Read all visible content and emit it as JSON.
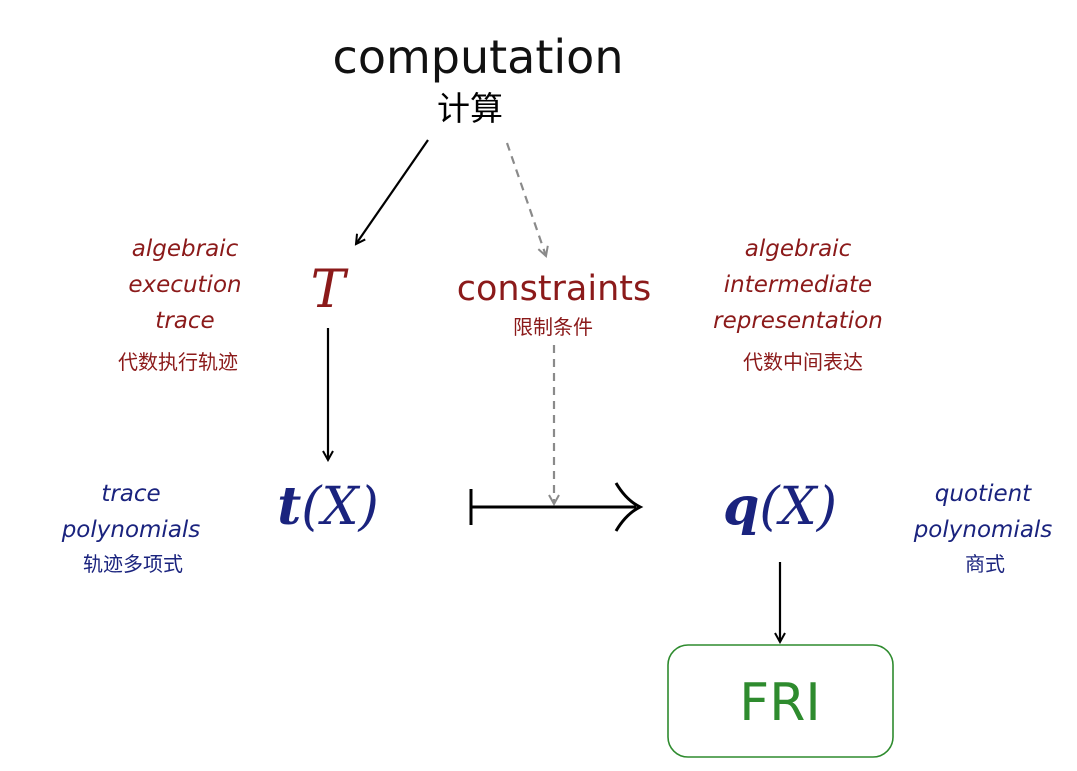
{
  "diagram": {
    "computation": {
      "title": "computation",
      "subtitle": "计算"
    },
    "trace_node": {
      "symbol": "T"
    },
    "constraints": {
      "title": "constraints",
      "subtitle": "限制条件"
    },
    "left_red_label": {
      "lines": [
        "algebraic",
        "execution",
        "trace"
      ],
      "chinese": "代数执行轨迹"
    },
    "right_red_label": {
      "lines": [
        "algebraic",
        "intermediate",
        "representation"
      ],
      "chinese": "代数中间表达"
    },
    "trace_poly": {
      "bold": "t",
      "rest": "(X)"
    },
    "quotient_poly": {
      "bold": "q",
      "rest": "(X)"
    },
    "left_blue_label": {
      "lines": [
        "trace",
        "polynomials"
      ],
      "chinese": "轨迹多项式"
    },
    "right_blue_label": {
      "lines": [
        "quotient",
        "polynomials"
      ],
      "chinese": "商式"
    },
    "fri": {
      "label": "FRI"
    }
  },
  "colors": {
    "red": "#8b1a1a",
    "blue": "#1a237e",
    "green": "#2e8b2e",
    "gray": "#8a8a8a",
    "black": "#000000"
  }
}
